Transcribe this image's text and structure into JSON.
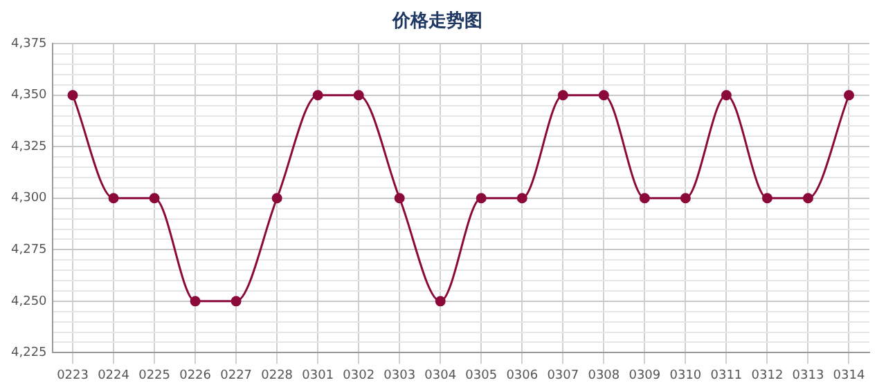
{
  "chart_data": {
    "type": "line",
    "title": "价格走势图",
    "categories": [
      "0223",
      "0224",
      "0225",
      "0226",
      "0227",
      "0228",
      "0301",
      "0302",
      "0303",
      "0304",
      "0305",
      "0306",
      "0307",
      "0308",
      "0309",
      "0310",
      "0311",
      "0312",
      "0313",
      "0314"
    ],
    "series": [
      {
        "color": "#8b0a3a",
        "values": [
          4350,
          4300,
          4300,
          4250,
          4250,
          4300,
          4350,
          4350,
          4300,
          4250,
          4300,
          4300,
          4350,
          4350,
          4300,
          4300,
          4350,
          4300,
          4300,
          4350
        ]
      }
    ],
    "ylim": [
      4225,
      4375
    ],
    "yticks": [
      {
        "value": 4225,
        "label": "4,225"
      },
      {
        "value": 4230,
        "label": null
      },
      {
        "value": 4235,
        "label": null
      },
      {
        "value": 4240,
        "label": null
      },
      {
        "value": 4245,
        "label": null
      },
      {
        "value": 4250,
        "label": "4,250"
      },
      {
        "value": 4255,
        "label": null
      },
      {
        "value": 4260,
        "label": null
      },
      {
        "value": 4265,
        "label": null
      },
      {
        "value": 4270,
        "label": null
      },
      {
        "value": 4275,
        "label": "4,275"
      },
      {
        "value": 4280,
        "label": null
      },
      {
        "value": 4285,
        "label": null
      },
      {
        "value": 4290,
        "label": null
      },
      {
        "value": 4295,
        "label": null
      },
      {
        "value": 4300,
        "label": "4,300"
      },
      {
        "value": 4305,
        "label": null
      },
      {
        "value": 4310,
        "label": null
      },
      {
        "value": 4315,
        "label": null
      },
      {
        "value": 4320,
        "label": null
      },
      {
        "value": 4325,
        "label": "4,325"
      },
      {
        "value": 4330,
        "label": null
      },
      {
        "value": 4335,
        "label": null
      },
      {
        "value": 4340,
        "label": null
      },
      {
        "value": 4345,
        "label": null
      },
      {
        "value": 4350,
        "label": "4,350"
      },
      {
        "value": 4355,
        "label": null
      },
      {
        "value": 4360,
        "label": null
      },
      {
        "value": 4365,
        "label": null
      },
      {
        "value": 4370,
        "label": null
      },
      {
        "value": 4375,
        "label": "4,375"
      }
    ],
    "grid": true,
    "legend": false,
    "marker": "circle",
    "line_style": "solid"
  }
}
